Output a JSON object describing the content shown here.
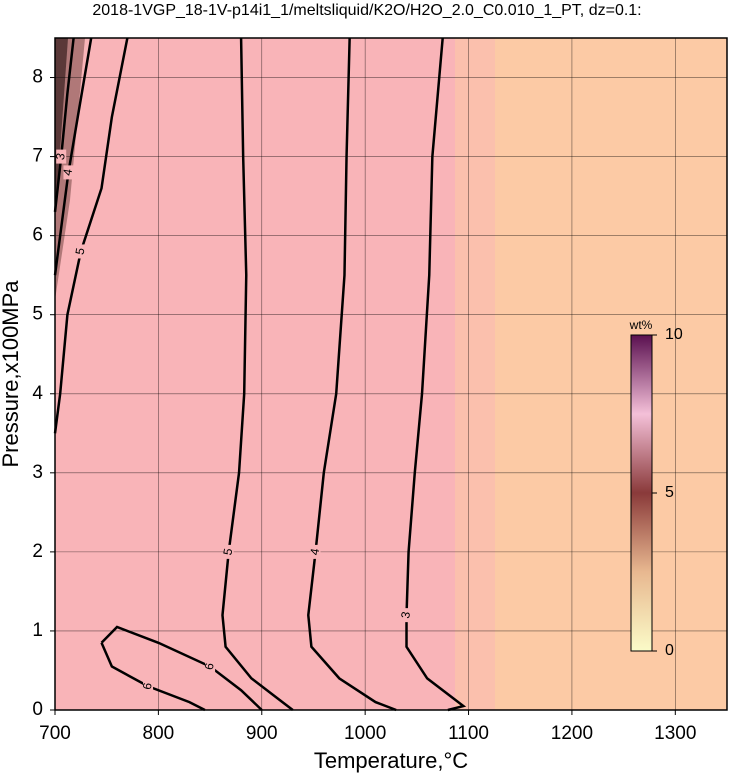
{
  "chart_data": {
    "type": "contour",
    "title": "2018-1VGP_18-1V-p14i1_1/meltsliquid/K2O/H2O_2.0_C0.010_1_PT, dz=0.1:",
    "x_label": "Temperature,°C",
    "y_label": "Pressure,x100MPa",
    "xlim": [
      700,
      1350
    ],
    "ylim": [
      0,
      8.5
    ],
    "xticks": [
      700,
      800,
      900,
      1000,
      1100,
      1200,
      1300
    ],
    "yticks": [
      0,
      1,
      2,
      3,
      4,
      5,
      6,
      7,
      8
    ],
    "grid": true,
    "color": "#000000",
    "series": [
      {
        "name": "5",
        "x": [
          880,
          882,
          885,
          883,
          878,
          868,
          862,
          865,
          890,
          920,
          930
        ],
        "y": [
          8.5,
          7,
          5.5,
          4,
          3,
          2,
          1.2,
          0.8,
          0.4,
          0.1,
          0
        ]
      },
      {
        "name": "4",
        "x": [
          985,
          982,
          980,
          972,
          960,
          952,
          945,
          948,
          975,
          1010,
          1030
        ],
        "y": [
          8.5,
          7,
          5.5,
          4,
          3,
          2,
          1.2,
          0.8,
          0.4,
          0.1,
          0
        ]
      },
      {
        "name": "3",
        "x": [
          1075,
          1065,
          1062,
          1055,
          1048,
          1042,
          1040,
          1040,
          1060,
          1085,
          1095,
          1080
        ],
        "y": [
          8.5,
          7,
          5.5,
          4,
          3,
          2,
          1.2,
          0.8,
          0.4,
          0.15,
          0.05,
          0
        ]
      },
      {
        "name": "5",
        "x": [
          770,
          755,
          745,
          725,
          712,
          705,
          700
        ],
        "y": [
          8.5,
          7.5,
          6.6,
          5.8,
          5,
          4,
          3.5
        ]
      },
      {
        "name": "4",
        "x": [
          735,
          722,
          713,
          705,
          700
        ],
        "y": [
          8.5,
          7.5,
          6.8,
          6,
          5.5
        ]
      },
      {
        "name": "3",
        "x": [
          718,
          712,
          706,
          700
        ],
        "y": [
          8.5,
          7.8,
          7,
          6.3
        ]
      },
      {
        "name": "6",
        "x": [
          745,
          760,
          800,
          850,
          880,
          900
        ],
        "y": [
          0.85,
          1.05,
          0.85,
          0.55,
          0.25,
          0
        ]
      },
      {
        "name": "6",
        "x": [
          745,
          755,
          790,
          830,
          845
        ],
        "y": [
          0.85,
          0.55,
          0.3,
          0.1,
          0
        ]
      }
    ],
    "colorbar": {
      "label": "wt%",
      "lim": [
        0,
        10
      ],
      "ticks": [
        0,
        5,
        10
      ]
    }
  }
}
